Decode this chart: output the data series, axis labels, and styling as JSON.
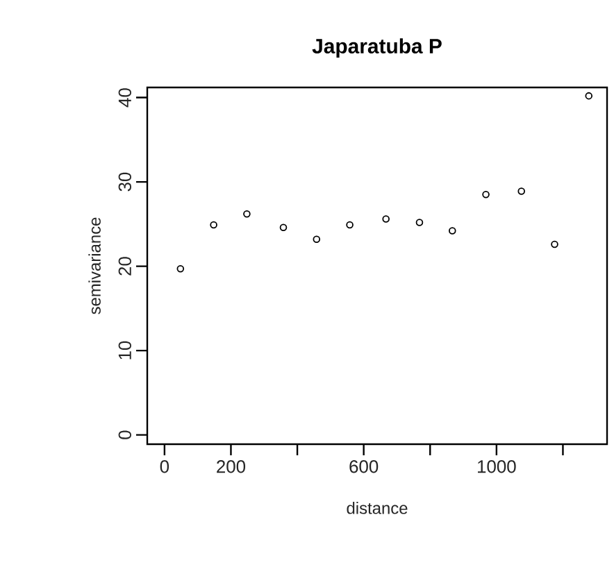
{
  "chart_data": {
    "type": "scatter",
    "title": "Japaratuba P",
    "xlabel": "distance",
    "ylabel": "semivariance",
    "x": [
      48,
      148,
      248,
      358,
      458,
      558,
      667,
      768,
      867,
      968,
      1075,
      1175,
      1278
    ],
    "values": [
      19.7,
      24.9,
      26.2,
      24.6,
      23.2,
      24.9,
      25.6,
      25.2,
      24.2,
      28.5,
      28.9,
      22.6,
      40.2
    ],
    "color": "#000000",
    "marker": "circle",
    "xlim": [
      -52,
      1333
    ],
    "ylim": [
      -1.1,
      41.2
    ],
    "xticks": [
      0,
      200,
      {
        "value": 400,
        "label": null
      },
      600,
      {
        "value": 800,
        "label": null
      },
      1000,
      {
        "value": 1200,
        "label": null
      }
    ],
    "yticks": [
      0,
      10,
      20,
      30,
      40
    ],
    "grid": false
  }
}
